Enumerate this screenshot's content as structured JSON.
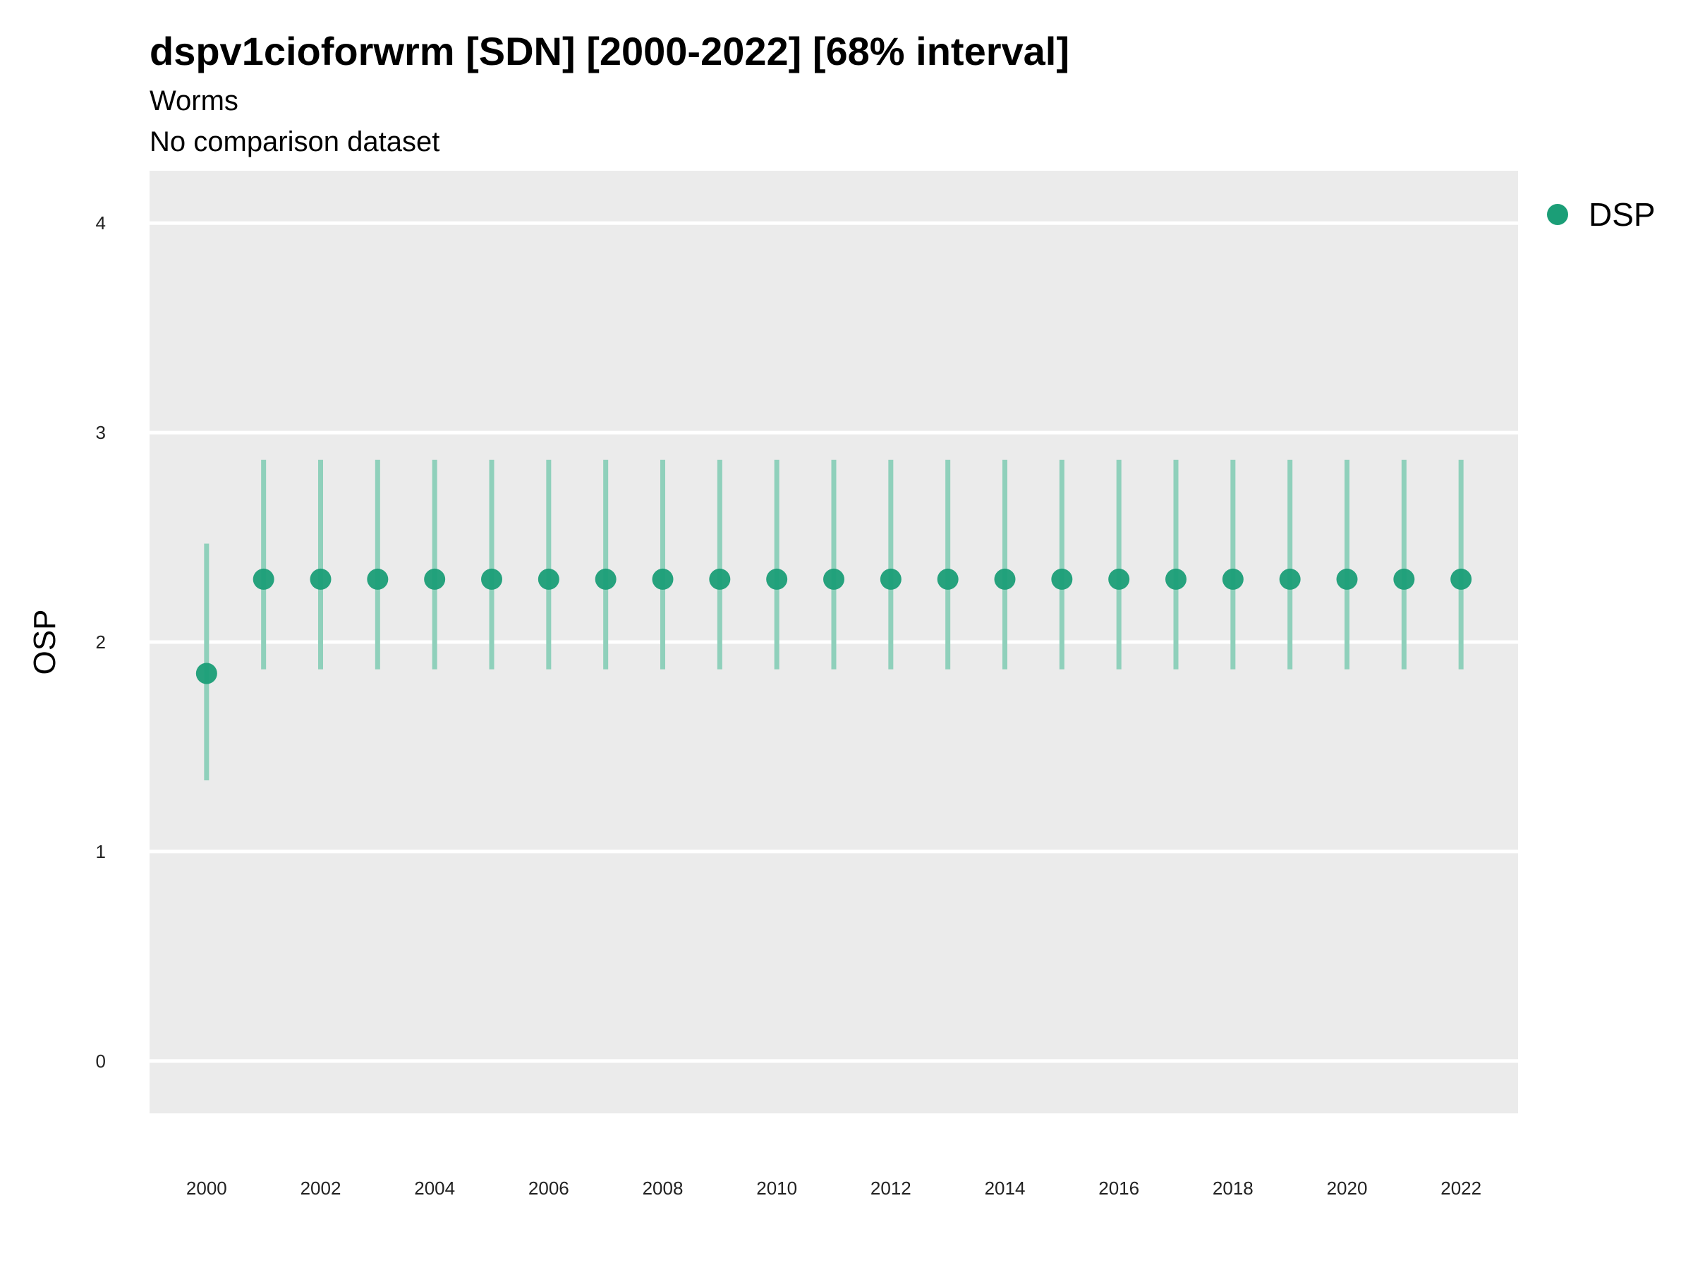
{
  "title": "dspv1cioforwrm [SDN] [2000-2022] [68% interval]",
  "subtitle": "Worms",
  "caption": "No comparison dataset",
  "chart_data": {
    "type": "scatter",
    "title": "dspv1cioforwrm [SDN] [2000-2022] [68% interval]",
    "subtitle": "Worms",
    "xlabel": "",
    "ylabel": "OSP",
    "xlim": [
      1999,
      2023
    ],
    "ylim": [
      -0.25,
      4.25
    ],
    "x_ticks": [
      2000,
      2002,
      2004,
      2006,
      2008,
      2010,
      2012,
      2014,
      2016,
      2018,
      2020,
      2022
    ],
    "y_ticks": [
      0,
      1,
      2,
      3,
      4
    ],
    "grid": true,
    "legend_position": "top-right",
    "series": [
      {
        "name": "DSP",
        "color": "#1b9e77",
        "points": [
          {
            "x": 2000,
            "y": 1.85,
            "lo": 1.34,
            "hi": 2.47
          },
          {
            "x": 2001,
            "y": 2.3,
            "lo": 1.87,
            "hi": 2.87
          },
          {
            "x": 2002,
            "y": 2.3,
            "lo": 1.87,
            "hi": 2.87
          },
          {
            "x": 2003,
            "y": 2.3,
            "lo": 1.87,
            "hi": 2.87
          },
          {
            "x": 2004,
            "y": 2.3,
            "lo": 1.87,
            "hi": 2.87
          },
          {
            "x": 2005,
            "y": 2.3,
            "lo": 1.87,
            "hi": 2.87
          },
          {
            "x": 2006,
            "y": 2.3,
            "lo": 1.87,
            "hi": 2.87
          },
          {
            "x": 2007,
            "y": 2.3,
            "lo": 1.87,
            "hi": 2.87
          },
          {
            "x": 2008,
            "y": 2.3,
            "lo": 1.87,
            "hi": 2.87
          },
          {
            "x": 2009,
            "y": 2.3,
            "lo": 1.87,
            "hi": 2.87
          },
          {
            "x": 2010,
            "y": 2.3,
            "lo": 1.87,
            "hi": 2.87
          },
          {
            "x": 2011,
            "y": 2.3,
            "lo": 1.87,
            "hi": 2.87
          },
          {
            "x": 2012,
            "y": 2.3,
            "lo": 1.87,
            "hi": 2.87
          },
          {
            "x": 2013,
            "y": 2.3,
            "lo": 1.87,
            "hi": 2.87
          },
          {
            "x": 2014,
            "y": 2.3,
            "lo": 1.87,
            "hi": 2.87
          },
          {
            "x": 2015,
            "y": 2.3,
            "lo": 1.87,
            "hi": 2.87
          },
          {
            "x": 2016,
            "y": 2.3,
            "lo": 1.87,
            "hi": 2.87
          },
          {
            "x": 2017,
            "y": 2.3,
            "lo": 1.87,
            "hi": 2.87
          },
          {
            "x": 2018,
            "y": 2.3,
            "lo": 1.87,
            "hi": 2.87
          },
          {
            "x": 2019,
            "y": 2.3,
            "lo": 1.87,
            "hi": 2.87
          },
          {
            "x": 2020,
            "y": 2.3,
            "lo": 1.87,
            "hi": 2.87
          },
          {
            "x": 2021,
            "y": 2.3,
            "lo": 1.87,
            "hi": 2.87
          },
          {
            "x": 2022,
            "y": 2.3,
            "lo": 1.87,
            "hi": 2.87
          }
        ]
      }
    ],
    "panel_color": "#ebebeb",
    "gridline_color": "#ffffff",
    "errorbar_color": "#8fd0bb"
  },
  "legend": {
    "label": "DSP"
  }
}
